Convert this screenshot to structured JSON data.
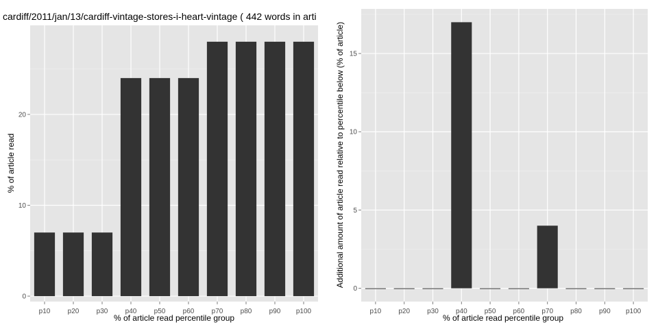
{
  "chart_data": [
    {
      "type": "bar",
      "title": "cardiff/2011/jan/13/cardiff-vintage-stores-i-heart-vintage ( 442 words in arti",
      "xlabel": "% of article read percentile group",
      "ylabel": "% of article read",
      "categories": [
        "p10",
        "p20",
        "p30",
        "p40",
        "p50",
        "p60",
        "p70",
        "p80",
        "p90",
        "p100"
      ],
      "values": [
        7,
        7,
        7,
        24,
        24,
        24,
        28,
        28,
        28,
        28
      ],
      "yticks": [
        0,
        10,
        20
      ],
      "ylim": [
        -0.6,
        29.8
      ],
      "grid": true,
      "bar_color": "#333333",
      "panel_color": "#e5e5e5"
    },
    {
      "type": "bar",
      "title": "",
      "xlabel": "% of article read percentile group",
      "ylabel": "Additional amount of article read relative to percentile below (% of article)",
      "categories": [
        "p10",
        "p20",
        "p30",
        "p40",
        "p50",
        "p60",
        "p70",
        "p80",
        "p90",
        "p100"
      ],
      "values": [
        0,
        0,
        0,
        17,
        0,
        0,
        4,
        0,
        0,
        0
      ],
      "yticks": [
        0,
        5,
        10,
        15
      ],
      "ylim": [
        -0.85,
        17.85
      ],
      "grid": true,
      "bar_color": "#333333",
      "panel_color": "#e5e5e5"
    }
  ]
}
